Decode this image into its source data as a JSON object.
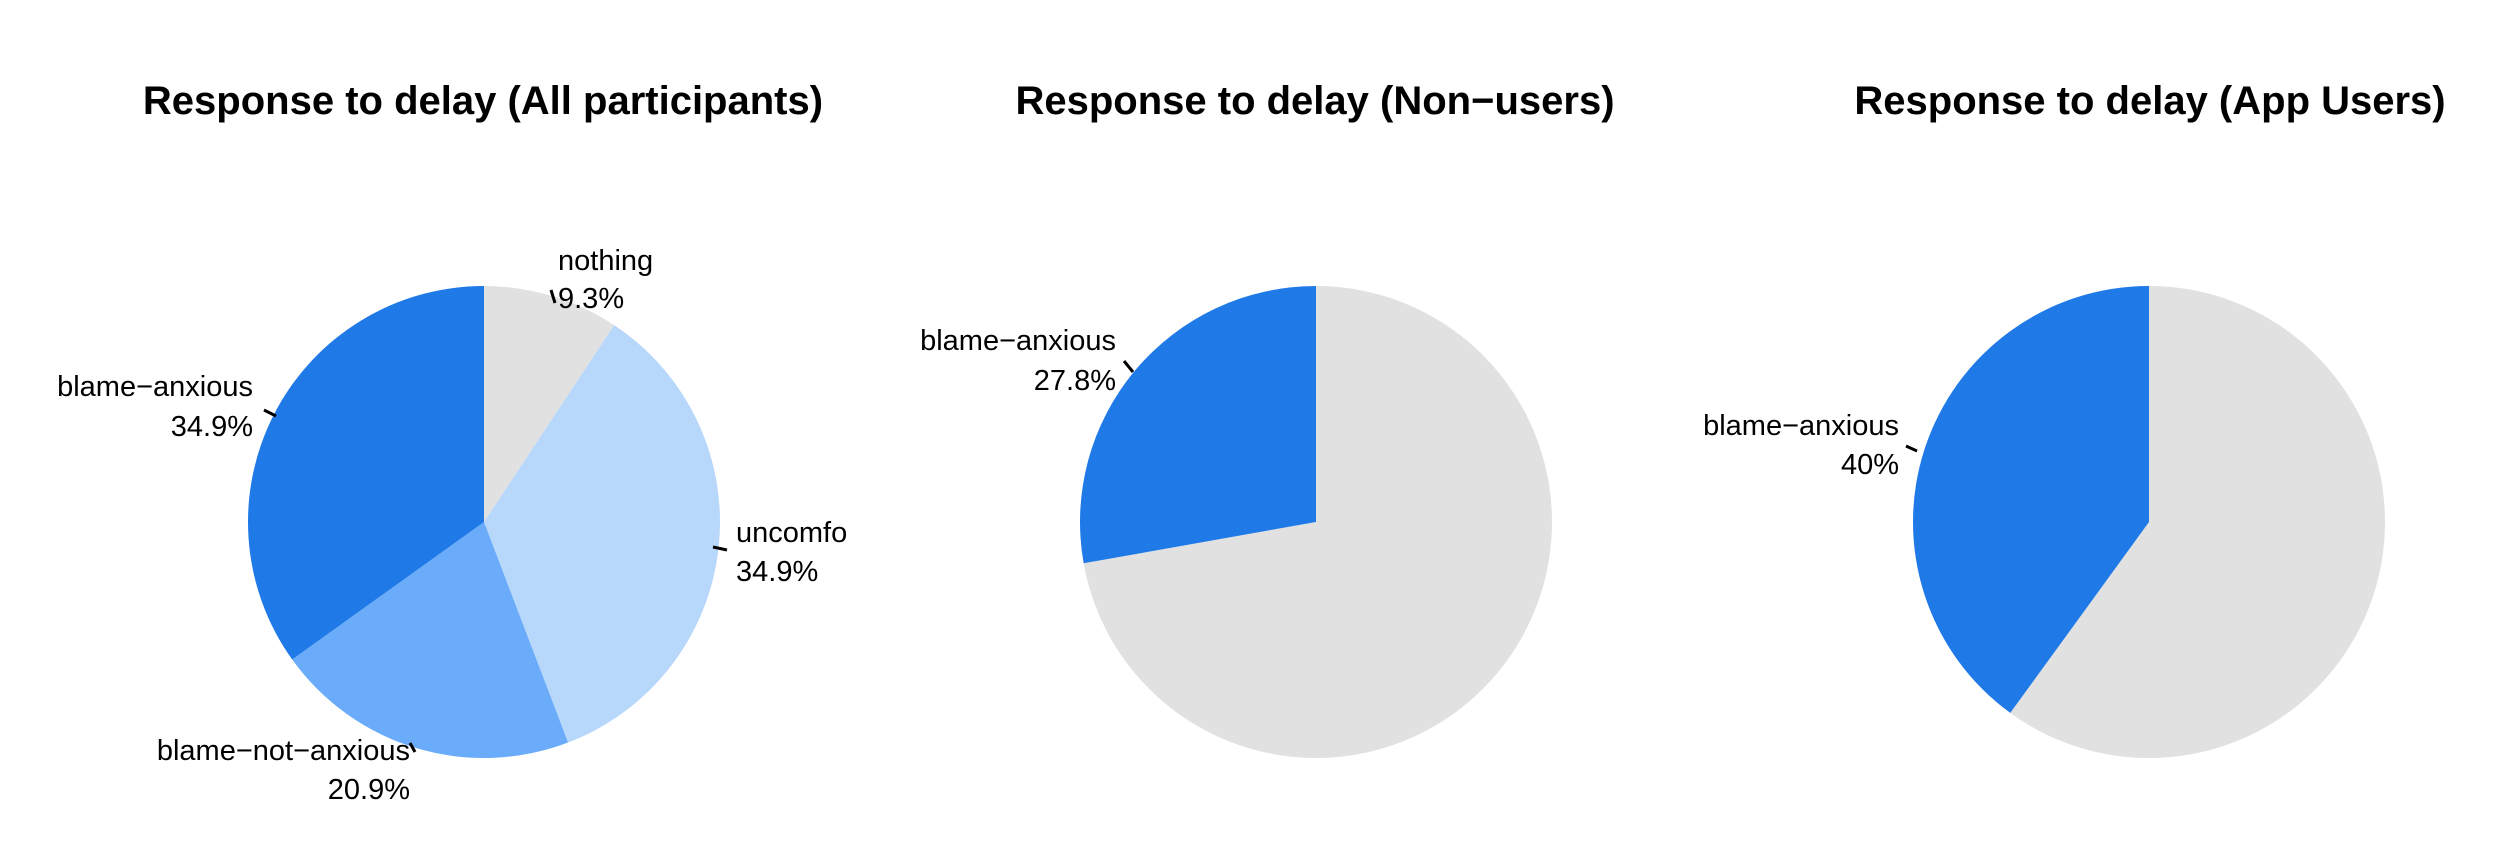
{
  "colors": {
    "blame_anxious": "#1f7ae8",
    "blame_not_anxious": "#6aacfa",
    "uncomfortable": "#b7d7fb",
    "other": "#e1e1e1"
  },
  "chart_data": [
    {
      "type": "pie",
      "title": "Response to delay (All participants)",
      "slices": [
        {
          "key": "nothing",
          "label": "nothing",
          "pct_label": "9.3%",
          "value": 9.3,
          "color_key": "other"
        },
        {
          "key": "uncomfortable",
          "label": "uncomfo",
          "pct_label": "34.9%",
          "value": 34.9,
          "color_key": "uncomfortable"
        },
        {
          "key": "blame_not_anxious",
          "label": "blame−not−anxious",
          "pct_label": "20.9%",
          "value": 20.9,
          "color_key": "blame_not_anxious"
        },
        {
          "key": "blame_anxious",
          "label": "blame−anxious",
          "pct_label": "34.9%",
          "value": 34.9,
          "color_key": "blame_anxious"
        }
      ]
    },
    {
      "type": "pie",
      "title": "Response to delay (Non−users)",
      "slices": [
        {
          "key": "other",
          "label": "",
          "pct_label": "",
          "value": 72.2,
          "color_key": "other"
        },
        {
          "key": "blame_anxious",
          "label": "blame−anxious",
          "pct_label": "27.8%",
          "value": 27.8,
          "color_key": "blame_anxious"
        }
      ]
    },
    {
      "type": "pie",
      "title": "Response to delay (App Users)",
      "slices": [
        {
          "key": "other",
          "label": "",
          "pct_label": "",
          "value": 60,
          "color_key": "other"
        },
        {
          "key": "blame_anxious",
          "label": "blame−anxious",
          "pct_label": "40%",
          "value": 40,
          "color_key": "blame_anxious"
        }
      ]
    }
  ]
}
